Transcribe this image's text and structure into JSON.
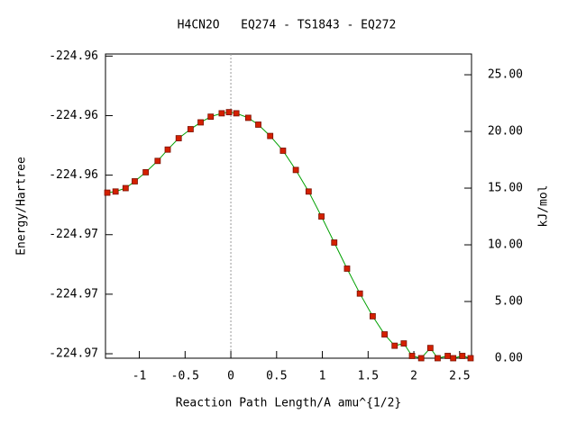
{
  "chart_data": {
    "type": "line",
    "title": "H4CN2O   EQ274 - TS1843 - EQ272",
    "xlabel": "Reaction Path Length/A amu^{1/2}",
    "ylabel": "Energy/Hartree",
    "y2label": "kJ/mol",
    "xlim": [
      -1.37,
      2.63
    ],
    "xticks": [
      -1,
      -0.5,
      0,
      0.5,
      1,
      1.5,
      2,
      2.5
    ],
    "ylim": [
      -224.96995,
      -224.95973
    ],
    "yticks": [
      {
        "value": -224.9698,
        "label": "-224.97"
      },
      {
        "value": -224.9678,
        "label": "-224.97"
      },
      {
        "value": -224.9658,
        "label": "-224.97"
      },
      {
        "value": -224.9638,
        "label": "-224.96"
      },
      {
        "value": -224.9618,
        "label": "-224.96"
      },
      {
        "value": -224.9598,
        "label": "-224.96"
      }
    ],
    "y2lim": [
      0,
      26.83
    ],
    "y2ticks": [
      {
        "value": 0,
        "label": "0.00"
      },
      {
        "value": 5,
        "label": "5.00"
      },
      {
        "value": 10,
        "label": "10.00"
      },
      {
        "value": 15,
        "label": "15.00"
      },
      {
        "value": 20,
        "label": "20.00"
      },
      {
        "value": 25,
        "label": "25.00"
      }
    ],
    "reference_x": 0,
    "x": [
      -1.35,
      -1.26,
      -1.15,
      -1.05,
      -0.93,
      -0.8,
      -0.69,
      -0.57,
      -0.44,
      -0.33,
      -0.22,
      -0.1,
      -0.02,
      0.06,
      0.19,
      0.3,
      0.43,
      0.57,
      0.71,
      0.85,
      0.99,
      1.13,
      1.27,
      1.41,
      1.55,
      1.68,
      1.79,
      1.89,
      1.98,
      2.08,
      2.18,
      2.26,
      2.37,
      2.43,
      2.53,
      2.62
    ],
    "series": [
      {
        "axis": "y2",
        "color": "#00a000",
        "marker_color": "#d42000",
        "values": [
          14.6,
          14.7,
          15.0,
          15.6,
          16.4,
          17.4,
          18.4,
          19.4,
          20.2,
          20.8,
          21.3,
          21.6,
          21.7,
          21.6,
          21.2,
          20.6,
          19.6,
          18.3,
          16.6,
          14.7,
          12.5,
          10.2,
          7.9,
          5.7,
          3.7,
          2.1,
          1.1,
          1.3,
          0.2,
          0.0,
          0.9,
          0.0,
          0.2,
          0.0,
          0.2,
          0.0
        ]
      }
    ]
  }
}
